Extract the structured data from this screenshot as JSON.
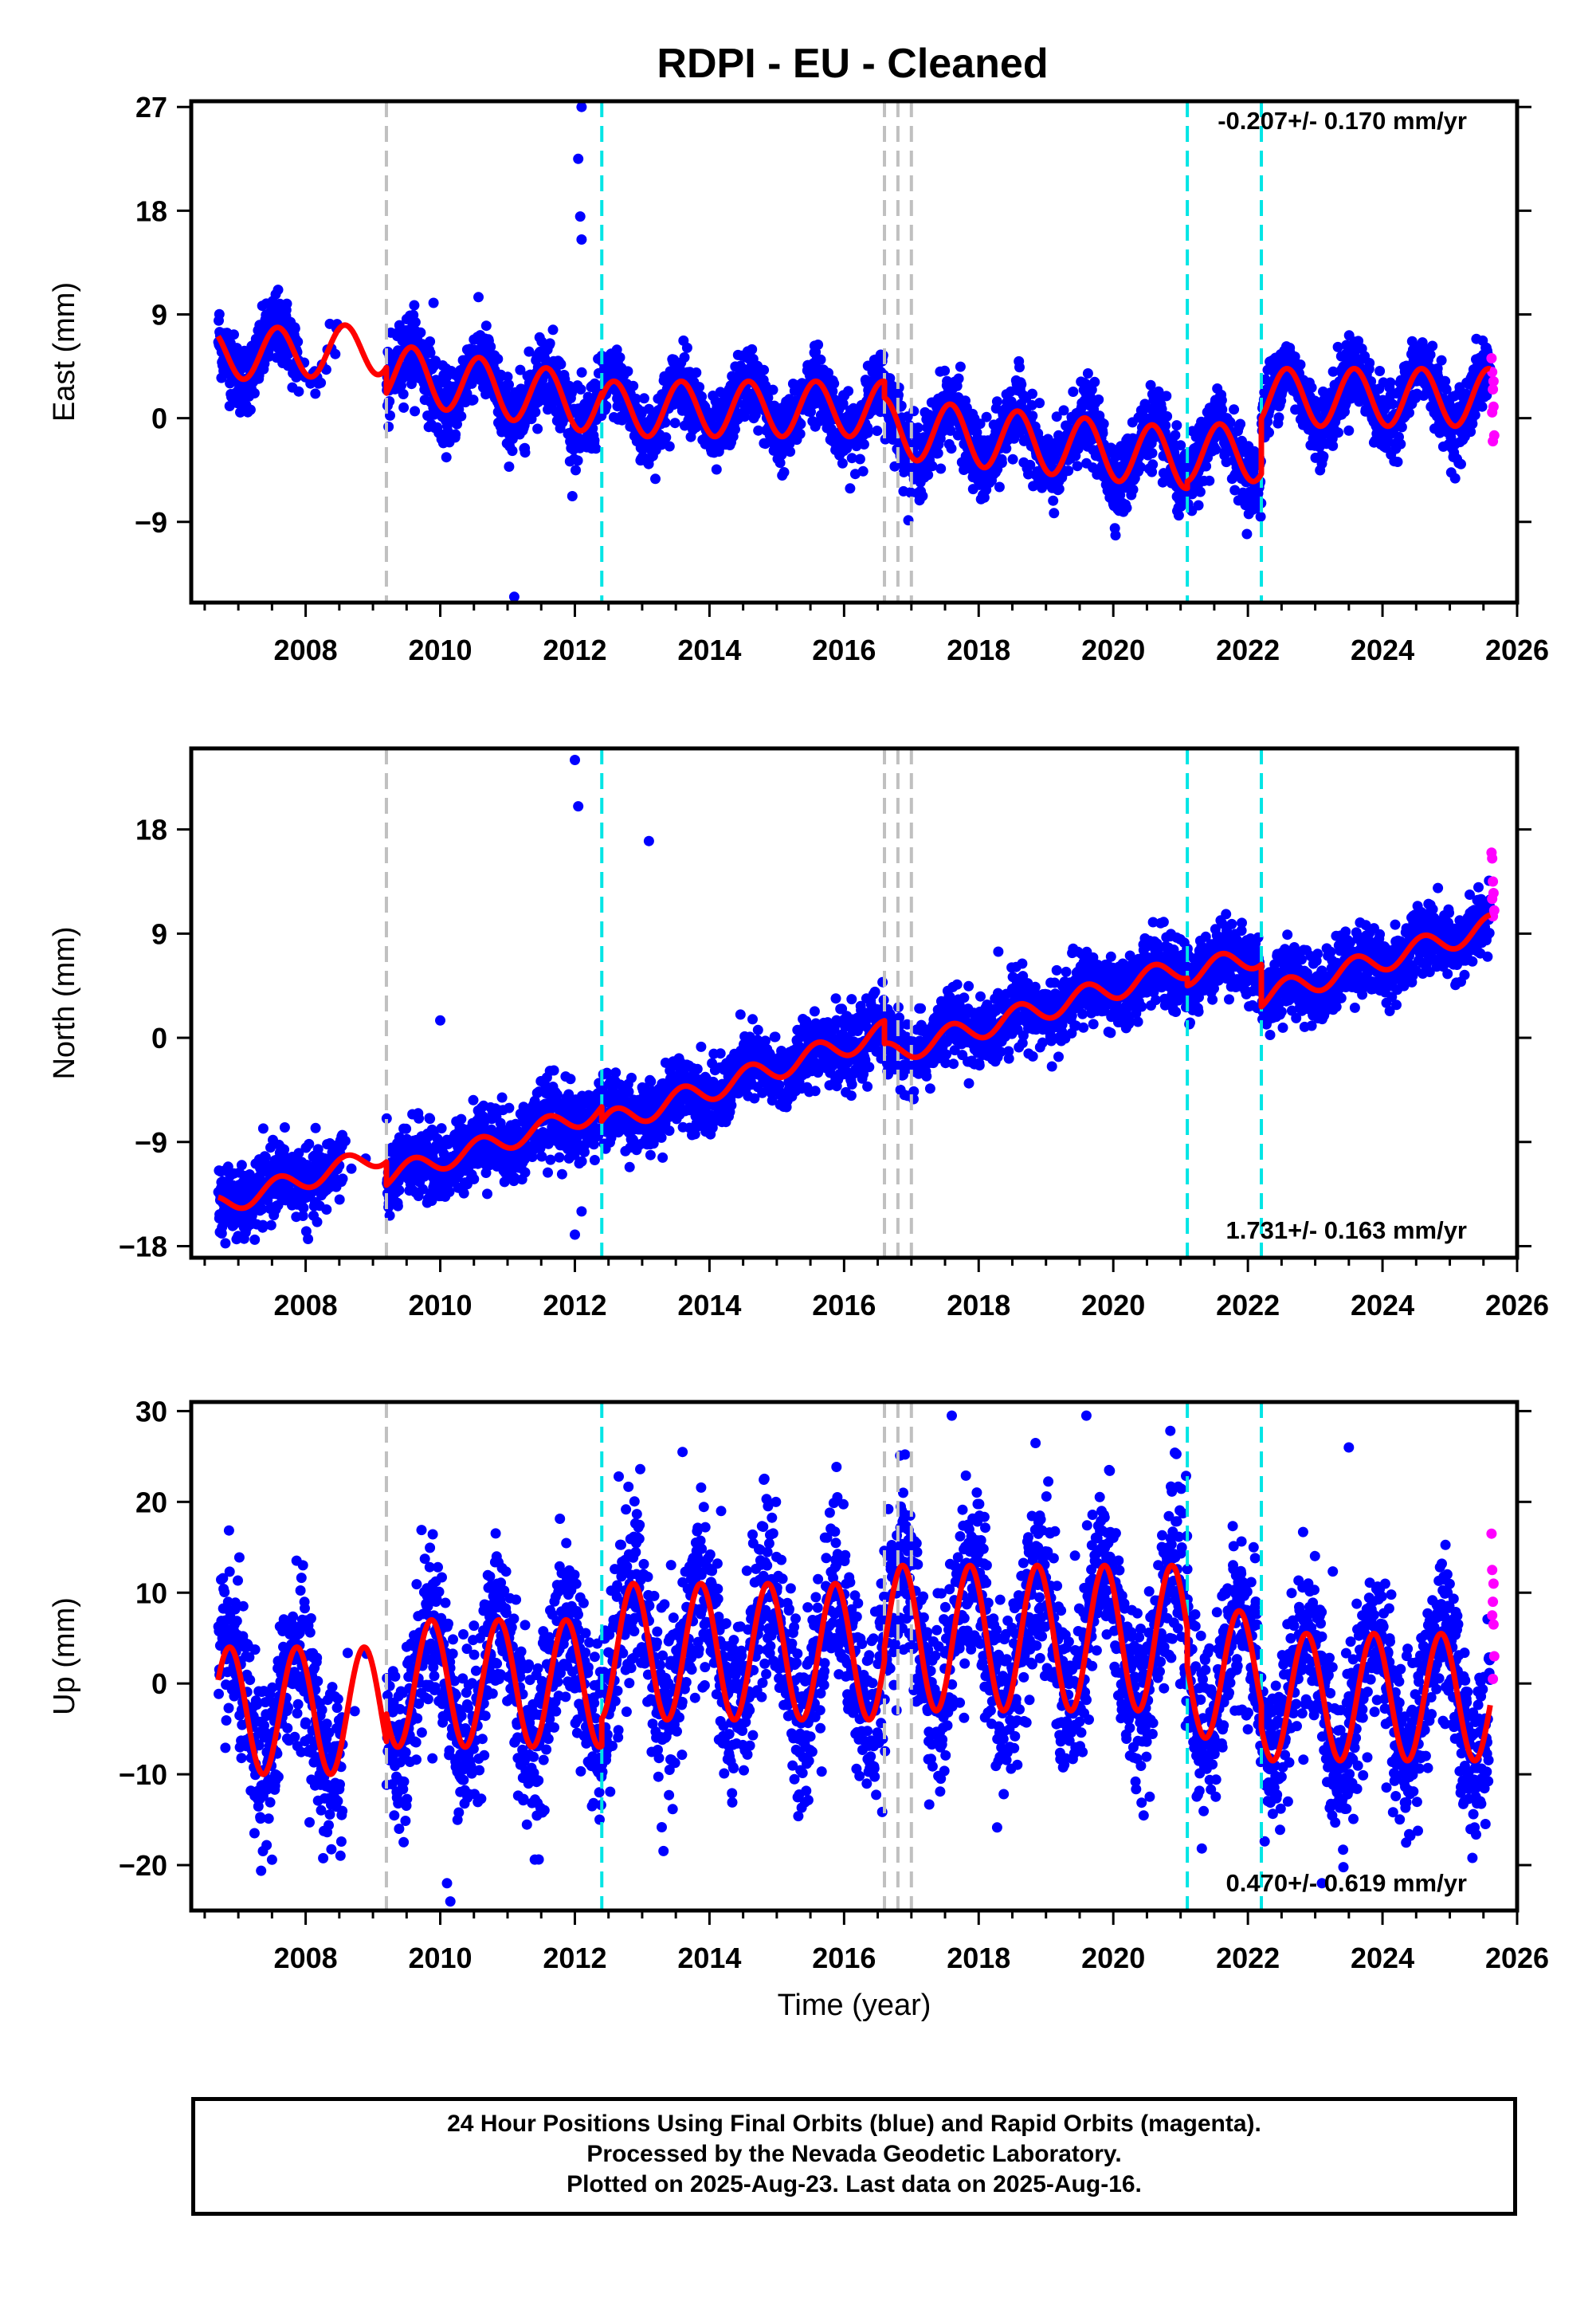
{
  "title": "RDPI  - EU - Cleaned",
  "footer": {
    "line1": "24 Hour Positions Using Final Orbits (blue) and Rapid Orbits (magenta).",
    "line2": "Processed by the Nevada Geodetic Laboratory.",
    "line3": "Plotted on 2025-Aug-23. Last data on 2025-Aug-16."
  },
  "colors": {
    "final_orbits": "#0000ff",
    "rapid_orbits": "#ff00ff",
    "model": "#ff0000",
    "equipment_change": "#c0c0c0",
    "earthquake": "#00e5e5"
  },
  "chart_data": [
    {
      "type": "scatter",
      "ylabel": "East (mm)",
      "xlabel": "",
      "xlim": [
        2006.3,
        2026.0
      ],
      "ylim": [
        -16,
        27.5
      ],
      "xticks": [
        "2008",
        "2010",
        "2012",
        "2014",
        "2016",
        "2018",
        "2020",
        "2022",
        "2024",
        "2026"
      ],
      "yticks": [
        "27",
        "18",
        "9",
        "0",
        "-9"
      ],
      "rate": "-0.207+/- 0.170 mm/yr",
      "rate_pos": "top-right",
      "grey_lines": [
        2009.2,
        2016.6,
        2016.8,
        2017.0
      ],
      "cyan_lines": [
        2012.4,
        2021.1,
        2022.2
      ],
      "series": [
        {
          "name": "Final Orbits (blue)",
          "segments": [
            {
              "start": 2006.7,
              "end": 2009.2,
              "a": 5.5,
              "b": 0.2,
              "amp": 2.2,
              "phase": 0.33,
              "scatter": 1.5
            },
            {
              "start": 2009.2,
              "end": 2012.4,
              "a": 4.0,
              "b": -0.9,
              "amp": 2.5,
              "phase": 0.33,
              "scatter": 1.6
            },
            {
              "start": 2012.4,
              "end": 2016.6,
              "a": 0.8,
              "b": 0.0,
              "amp": 2.4,
              "phase": 0.33,
              "scatter": 1.5
            },
            {
              "start": 2016.6,
              "end": 2021.1,
              "a": -0.8,
              "b": -0.6,
              "amp": 2.6,
              "phase": 0.33,
              "scatter": 1.6
            },
            {
              "start": 2021.1,
              "end": 2022.2,
              "a": -3.0,
              "b": 0.0,
              "amp": 2.5,
              "phase": 0.33,
              "scatter": 1.5
            },
            {
              "start": 2022.2,
              "end": 2025.6,
              "a": 1.8,
              "b": 0.0,
              "amp": 2.5,
              "phase": 0.33,
              "scatter": 1.5
            }
          ]
        },
        {
          "name": "Rapid Orbits (magenta)",
          "points": [
            [
              2025.62,
              5.2
            ],
            [
              2025.63,
              4.0
            ],
            [
              2025.64,
              2.5
            ],
            [
              2025.65,
              1.0
            ],
            [
              2025.66,
              -1.5
            ],
            [
              2025.64,
              -2.0
            ],
            [
              2025.63,
              0.5
            ],
            [
              2025.65,
              3.2
            ]
          ]
        }
      ],
      "outliers": [
        [
          2012.1,
          27.0
        ],
        [
          2012.05,
          22.5
        ],
        [
          2012.08,
          17.5
        ],
        [
          2012.1,
          15.5
        ],
        [
          2011.1,
          -15.5
        ],
        [
          2009.9,
          10.0
        ]
      ],
      "model": {
        "name": "model",
        "color": "#ff0000"
      }
    },
    {
      "type": "scatter",
      "ylabel": "North (mm)",
      "xlabel": "",
      "xlim": [
        2006.3,
        2026.0
      ],
      "ylim": [
        -19,
        25
      ],
      "xticks": [
        "2008",
        "2010",
        "2012",
        "2014",
        "2016",
        "2018",
        "2020",
        "2022",
        "2024",
        "2026"
      ],
      "yticks": [
        "18",
        "9",
        "0",
        "-9",
        "-18"
      ],
      "rate": "1.731+/- 0.163 mm/yr",
      "rate_pos": "bottom-right",
      "grey_lines": [
        2009.2,
        2016.6,
        2016.8,
        2017.0
      ],
      "cyan_lines": [
        2012.4,
        2021.1,
        2022.2
      ],
      "series": [
        {
          "name": "Final Orbits (blue)",
          "segments": [
            {
              "start": 2006.7,
              "end": 2009.2,
              "a": -14.5,
              "b": 1.8,
              "amp": 0.9,
              "phase": 0.35,
              "scatter": 1.5
            },
            {
              "start": 2009.2,
              "end": 2012.4,
              "a": -12.0,
              "b": 1.8,
              "amp": 0.9,
              "phase": 0.35,
              "scatter": 1.6
            },
            {
              "start": 2012.4,
              "end": 2016.6,
              "a": -7.5,
              "b": 1.9,
              "amp": 1.0,
              "phase": 0.35,
              "scatter": 1.5
            },
            {
              "start": 2016.6,
              "end": 2021.1,
              "a": -1.5,
              "b": 1.7,
              "amp": 1.0,
              "phase": 0.35,
              "scatter": 1.5
            },
            {
              "start": 2021.1,
              "end": 2022.2,
              "a": 5.5,
              "b": 1.5,
              "amp": 1.0,
              "phase": 0.35,
              "scatter": 1.5
            },
            {
              "start": 2022.2,
              "end": 2025.6,
              "a": 3.5,
              "b": 1.8,
              "amp": 1.0,
              "phase": 0.35,
              "scatter": 1.5
            }
          ]
        },
        {
          "name": "Rapid Orbits (magenta)",
          "points": [
            [
              2025.62,
              16.0
            ],
            [
              2025.63,
              15.5
            ],
            [
              2025.64,
              13.5
            ],
            [
              2025.65,
              12.5
            ],
            [
              2025.66,
              11.0
            ],
            [
              2025.64,
              10.5
            ],
            [
              2025.63,
              12.0
            ]
          ]
        }
      ],
      "outliers": [
        [
          2012.0,
          24.0
        ],
        [
          2012.05,
          20.0
        ],
        [
          2013.1,
          17.0
        ],
        [
          2010.0,
          1.5
        ],
        [
          2012.1,
          -15.0
        ],
        [
          2012.0,
          -17.0
        ]
      ],
      "model": {
        "name": "model",
        "color": "#ff0000"
      }
    },
    {
      "type": "scatter",
      "ylabel": "Up (mm)",
      "xlabel": "Time (year)",
      "xlim": [
        2006.3,
        2026.0
      ],
      "ylim": [
        -25,
        31
      ],
      "xticks": [
        "2008",
        "2010",
        "2012",
        "2014",
        "2016",
        "2018",
        "2020",
        "2022",
        "2024",
        "2026"
      ],
      "yticks": [
        "30",
        "20",
        "10",
        "0",
        "-10",
        "-20"
      ],
      "rate": "0.470+/- 0.619 mm/yr",
      "rate_pos": "bottom-right",
      "grey_lines": [
        2009.2,
        2016.6,
        2016.8,
        2017.0
      ],
      "cyan_lines": [
        2012.4,
        2021.1,
        2022.2
      ],
      "series": [
        {
          "name": "Final Orbits (blue)",
          "segments": [
            {
              "start": 2006.7,
              "end": 2009.2,
              "a": -3.0,
              "b": 0.0,
              "amp": 7.0,
              "phase": 0.62,
              "scatter": 4.5
            },
            {
              "start": 2009.2,
              "end": 2012.4,
              "a": 0.0,
              "b": 0.0,
              "amp": 7.0,
              "phase": 0.62,
              "scatter": 4.5
            },
            {
              "start": 2012.4,
              "end": 2016.6,
              "a": 3.5,
              "b": 0.0,
              "amp": 7.5,
              "phase": 0.62,
              "scatter": 5.0
            },
            {
              "start": 2016.6,
              "end": 2021.1,
              "a": 5.0,
              "b": 0.0,
              "amp": 8.0,
              "phase": 0.62,
              "scatter": 5.0
            },
            {
              "start": 2021.1,
              "end": 2022.2,
              "a": 1.0,
              "b": 0.0,
              "amp": 7.0,
              "phase": 0.62,
              "scatter": 4.5
            },
            {
              "start": 2022.2,
              "end": 2025.6,
              "a": -1.5,
              "b": 0.0,
              "amp": 7.0,
              "phase": 0.62,
              "scatter": 4.5
            }
          ]
        },
        {
          "name": "Rapid Orbits (magenta)",
          "points": [
            [
              2025.62,
              16.5
            ],
            [
              2025.63,
              12.5
            ],
            [
              2025.64,
              9.0
            ],
            [
              2025.65,
              6.5
            ],
            [
              2025.66,
              3.0
            ],
            [
              2025.64,
              0.5
            ],
            [
              2025.63,
              7.5
            ],
            [
              2025.65,
              11.0
            ]
          ]
        }
      ],
      "outliers": [
        [
          2017.6,
          29.5
        ],
        [
          2019.6,
          29.5
        ],
        [
          2023.5,
          26.0
        ],
        [
          2013.6,
          25.5
        ],
        [
          2010.1,
          -22.0
        ],
        [
          2010.15,
          -24.0
        ],
        [
          2023.1,
          -22.0
        ]
      ],
      "model": {
        "name": "model",
        "color": "#ff0000"
      }
    }
  ]
}
